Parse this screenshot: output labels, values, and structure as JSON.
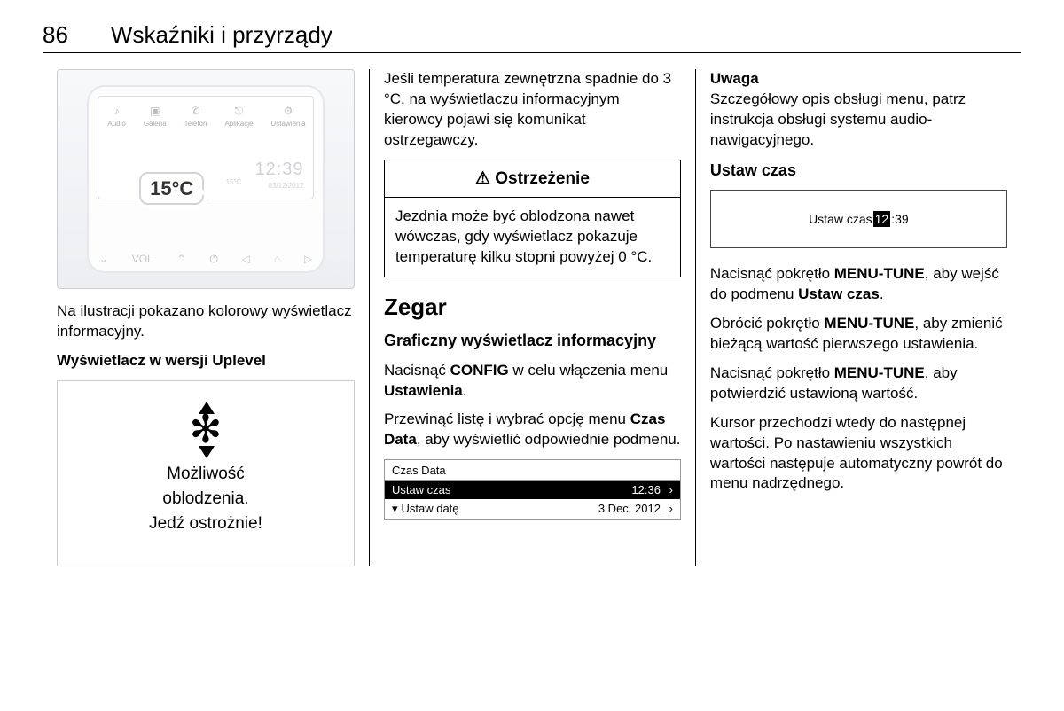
{
  "header": {
    "page_number": "86",
    "title": "Wskaźniki i przyrządy"
  },
  "col1": {
    "illustration": {
      "icons": [
        {
          "glyph": "♪",
          "label": "Audio"
        },
        {
          "glyph": "▣",
          "label": "Galeria"
        },
        {
          "glyph": "✆",
          "label": "Telefon"
        },
        {
          "glyph": "⎋",
          "label": "Aplikacje"
        },
        {
          "glyph": "⚙",
          "label": "Ustawienia"
        }
      ],
      "temperature_bubble": "15°C",
      "small_temp": "15°C",
      "clock_time": "12:39",
      "clock_date": "03/12/2012",
      "buttons": [
        "⌄",
        "VOL",
        "⌃",
        "⏻",
        "◁",
        "⌂",
        "▷"
      ]
    },
    "caption": "Na ilustracji pokazano kolorowy wyświetlacz informacyjny.",
    "uplevel_heading": "Wyświetlacz w wersji Uplevel",
    "uplevel_line1": "Możliwość",
    "uplevel_line2": "oblodzenia.",
    "uplevel_line3": "Jedź ostrożnie!"
  },
  "col2": {
    "intro": "Jeśli temperatura zewnętrzna spadnie do 3 °C, na wyświetlaczu informacyjnym kierowcy pojawi się komunikat ostrzegawczy.",
    "warning_title": "⚠ Ostrzeżenie",
    "warning_body": "Jezdnia może być oblodzona nawet wówczas, gdy wyświetlacz pokazuje temperaturę kilku stopni powyżej 0 °C.",
    "h2": "Zegar",
    "h3": "Graficzny wyświetlacz informacyjny",
    "p1_a": "Nacisnąć ",
    "p1_b": "CONFIG",
    "p1_c": " w celu włączenia menu ",
    "p1_d": "Ustawienia",
    "p1_e": ".",
    "p2_a": "Przewinąć listę i wybrać opcję menu ",
    "p2_b": "Czas Data",
    "p2_c": ", aby wyświetlić odpowiednie podmenu.",
    "menu": {
      "title": "Czas Data",
      "rows": [
        {
          "label": "Ustaw czas",
          "value": "12:36",
          "selected": true
        },
        {
          "label": "Ustaw datę",
          "value": "3 Dec. 2012",
          "selected": false
        }
      ]
    }
  },
  "col3": {
    "note_head": "Uwaga",
    "note_body": "Szczegółowy opis obsługi menu, patrz instrukcja obsługi systemu audio-nawigacyjnego.",
    "h3": "Ustaw czas",
    "time_label": "Ustaw czas ",
    "time_hh": "12",
    "time_rest": ":39",
    "p1_a": "Nacisnąć pokrętło ",
    "p1_b": "MENU-TUNE",
    "p1_c": ", aby wejść do podmenu ",
    "p1_d": "Ustaw czas",
    "p1_e": ".",
    "p2_a": "Obrócić pokrętło ",
    "p2_b": "MENU-TUNE",
    "p2_c": ", aby zmienić bieżącą wartość pierwszego ustawienia.",
    "p3_a": "Nacisnąć pokrętło ",
    "p3_b": "MENU-TUNE",
    "p3_c": ", aby potwierdzić ustawioną wartość.",
    "p4": "Kursor przechodzi wtedy do następnej wartości. Po nastawieniu wszystkich wartości następuje automatyczny powrót do menu nadrzędnego."
  }
}
